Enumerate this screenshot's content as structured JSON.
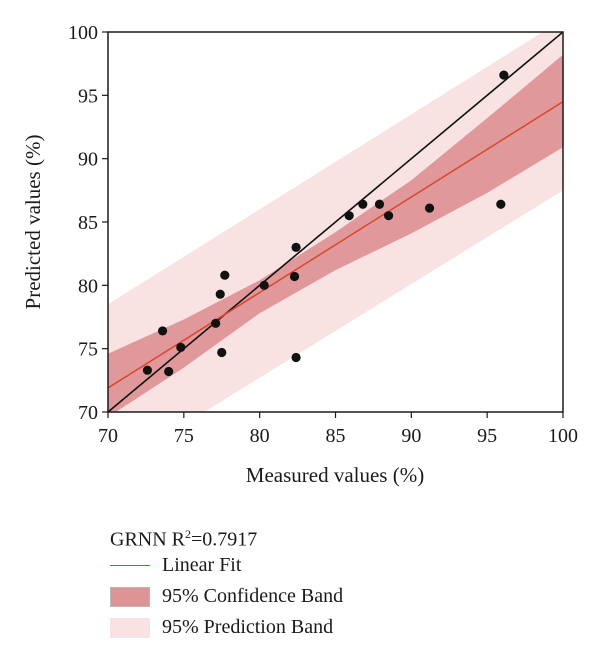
{
  "chart_data": {
    "type": "scatter",
    "xlabel": "Measured values (%)",
    "ylabel": "Predicted values (%)",
    "xlim": [
      70,
      100
    ],
    "ylim": [
      70,
      100
    ],
    "xticks": [
      70,
      75,
      80,
      85,
      90,
      95,
      100
    ],
    "yticks": [
      70,
      75,
      80,
      85,
      90,
      95,
      100
    ],
    "grid": false,
    "legend_position": "bottom",
    "points": [
      {
        "x": 72.6,
        "y": 73.3
      },
      {
        "x": 73.6,
        "y": 76.4
      },
      {
        "x": 74.0,
        "y": 73.2
      },
      {
        "x": 74.8,
        "y": 75.1
      },
      {
        "x": 77.1,
        "y": 77.0
      },
      {
        "x": 77.4,
        "y": 79.3
      },
      {
        "x": 77.7,
        "y": 80.8
      },
      {
        "x": 77.5,
        "y": 74.7
      },
      {
        "x": 80.3,
        "y": 80.0
      },
      {
        "x": 82.3,
        "y": 80.7
      },
      {
        "x": 82.4,
        "y": 83.0
      },
      {
        "x": 82.4,
        "y": 74.3
      },
      {
        "x": 85.9,
        "y": 85.5
      },
      {
        "x": 86.8,
        "y": 86.4
      },
      {
        "x": 87.9,
        "y": 86.4
      },
      {
        "x": 88.5,
        "y": 85.5
      },
      {
        "x": 91.2,
        "y": 86.1
      },
      {
        "x": 95.9,
        "y": 86.4
      },
      {
        "x": 96.1,
        "y": 96.6
      }
    ],
    "linear_fit": {
      "start": [
        70,
        71.9
      ],
      "end": [
        100,
        94.5
      ]
    },
    "reference_line": {
      "start": [
        70,
        70
      ],
      "end": [
        100,
        100
      ]
    },
    "confidence_band": {
      "x": [
        70,
        75,
        80,
        85,
        90,
        95,
        100
      ],
      "upper": [
        74.6,
        77.3,
        80.4,
        84.2,
        88.3,
        93.2,
        98.2
      ],
      "lower": [
        69.6,
        73.5,
        77.8,
        81.2,
        84.1,
        87.3,
        90.9
      ]
    },
    "prediction_band": {
      "x": [
        70,
        100
      ],
      "upper": [
        78.5,
        101.0
      ],
      "lower": [
        65.3,
        87.5
      ]
    },
    "colors": {
      "fit_line": "#d9472b",
      "reference_line": "#111111",
      "confidence_band": "#de9497",
      "prediction_band": "#f8e2e2",
      "points": "#111111"
    },
    "legend": {
      "title_prefix": "GRNN R",
      "title_superscript": "2",
      "title_suffix": "=0.7917",
      "entries": [
        "Linear Fit",
        "95% Confidence Band",
        "95% Prediction Band"
      ]
    }
  }
}
